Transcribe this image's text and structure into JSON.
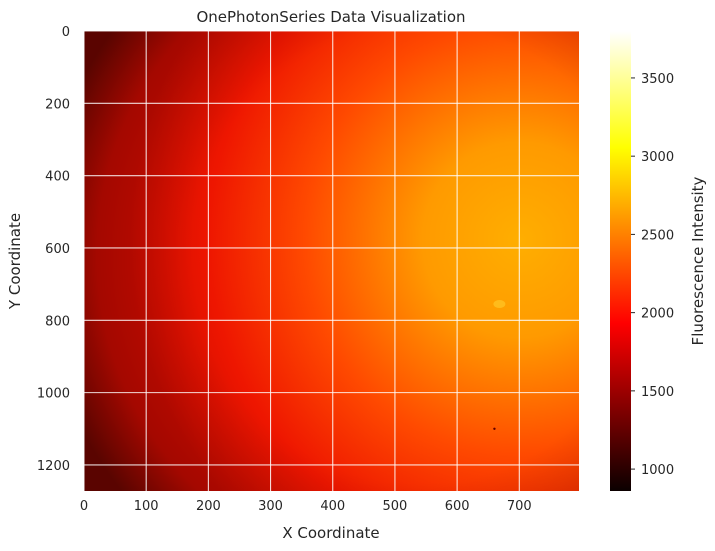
{
  "chart_data": {
    "type": "heatmap",
    "title": "OnePhotonSeries Data Visualization",
    "xlabel": "X Coordinate",
    "ylabel": "Y Coordinate",
    "xlim": [
      0,
      796
    ],
    "ylim": [
      1272,
      0
    ],
    "x_ticks": [
      0,
      100,
      200,
      300,
      400,
      500,
      600,
      700
    ],
    "x_tick_labels": [
      "0",
      "100",
      "200",
      "300",
      "400",
      "500",
      "600",
      "700"
    ],
    "y_ticks": [
      0,
      200,
      400,
      600,
      800,
      1000,
      1200
    ],
    "y_tick_labels": [
      "0",
      "200",
      "400",
      "600",
      "800",
      "1000",
      "1200"
    ],
    "grid": true,
    "colormap": "hot",
    "colorbar": {
      "label": "Fluorescence Intensity",
      "range": [
        860,
        3800
      ],
      "ticks": [
        1000,
        1500,
        2000,
        2500,
        3000,
        3500
      ],
      "tick_labels": [
        "1000",
        "1500",
        "2000",
        "2500",
        "3000",
        "3500"
      ]
    },
    "field": {
      "peak_center": [
        570,
        580
      ],
      "peak_value": 2700,
      "corner_value": 1100,
      "hot_spot": {
        "x": 668,
        "y": 755,
        "value": 3000
      },
      "dark_spot": {
        "x": 660,
        "y": 1100,
        "value": 1000
      }
    }
  }
}
